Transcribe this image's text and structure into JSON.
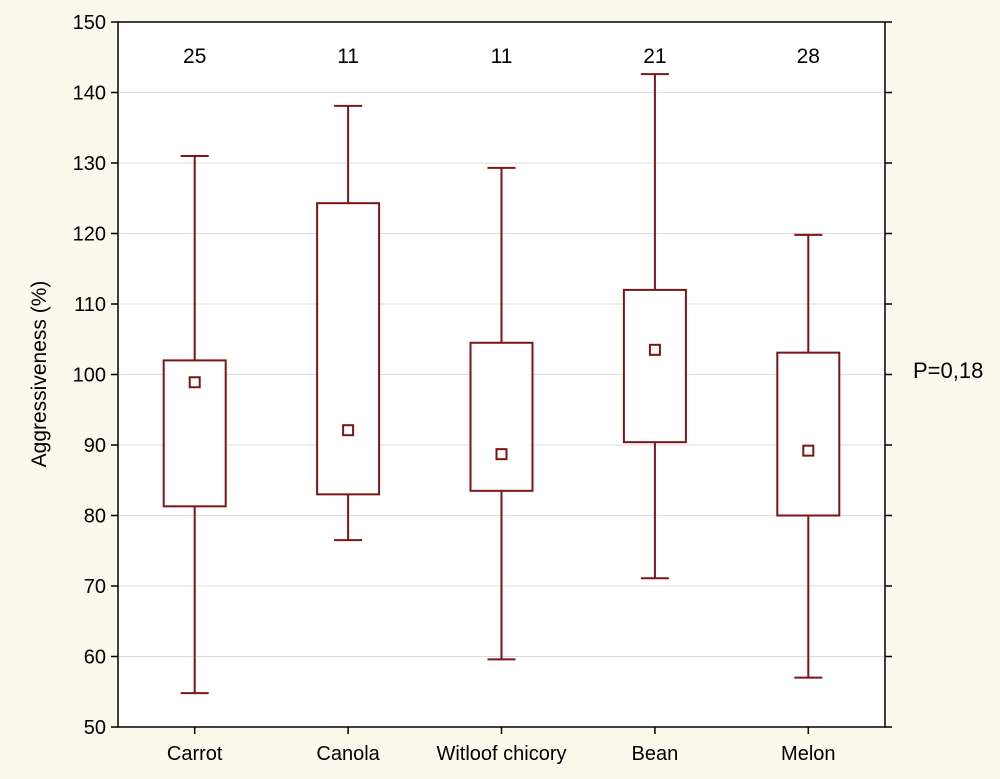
{
  "chart_data": {
    "type": "box",
    "ylabel": "Aggressiveness (%)",
    "xlabel": "",
    "ylim": [
      50,
      150
    ],
    "yticks": [
      50,
      60,
      70,
      80,
      90,
      100,
      110,
      120,
      130,
      140,
      150
    ],
    "grid": true,
    "categories": [
      "Carrot",
      "Canola",
      "Witloof chicory",
      "Bean",
      "Melon"
    ],
    "counts": [
      "25",
      "11",
      "11",
      "21",
      "28"
    ],
    "boxes": [
      {
        "category": "Carrot",
        "whisker_low": 54.8,
        "box_low": 81.3,
        "mean": 98.9,
        "box_high": 102.0,
        "whisker_high": 131.0
      },
      {
        "category": "Canola",
        "whisker_low": 76.5,
        "box_low": 83.0,
        "mean": 92.1,
        "box_high": 124.3,
        "whisker_high": 138.1
      },
      {
        "category": "Witloof chicory",
        "whisker_low": 59.6,
        "box_low": 83.5,
        "mean": 88.7,
        "box_high": 104.5,
        "whisker_high": 129.3
      },
      {
        "category": "Bean",
        "whisker_low": 71.1,
        "box_low": 90.4,
        "mean": 103.5,
        "box_high": 112.0,
        "whisker_high": 142.6
      },
      {
        "category": "Melon",
        "whisker_low": 57.0,
        "box_low": 80.0,
        "mean": 89.2,
        "box_high": 103.1,
        "whisker_high": 119.8
      }
    ],
    "annotation": "P=0,18",
    "colors": {
      "box": "#7b1517",
      "grid": "#dcdcdc",
      "axis": "#000000",
      "background": "#fbf8ec",
      "plot": "#ffffff"
    }
  }
}
